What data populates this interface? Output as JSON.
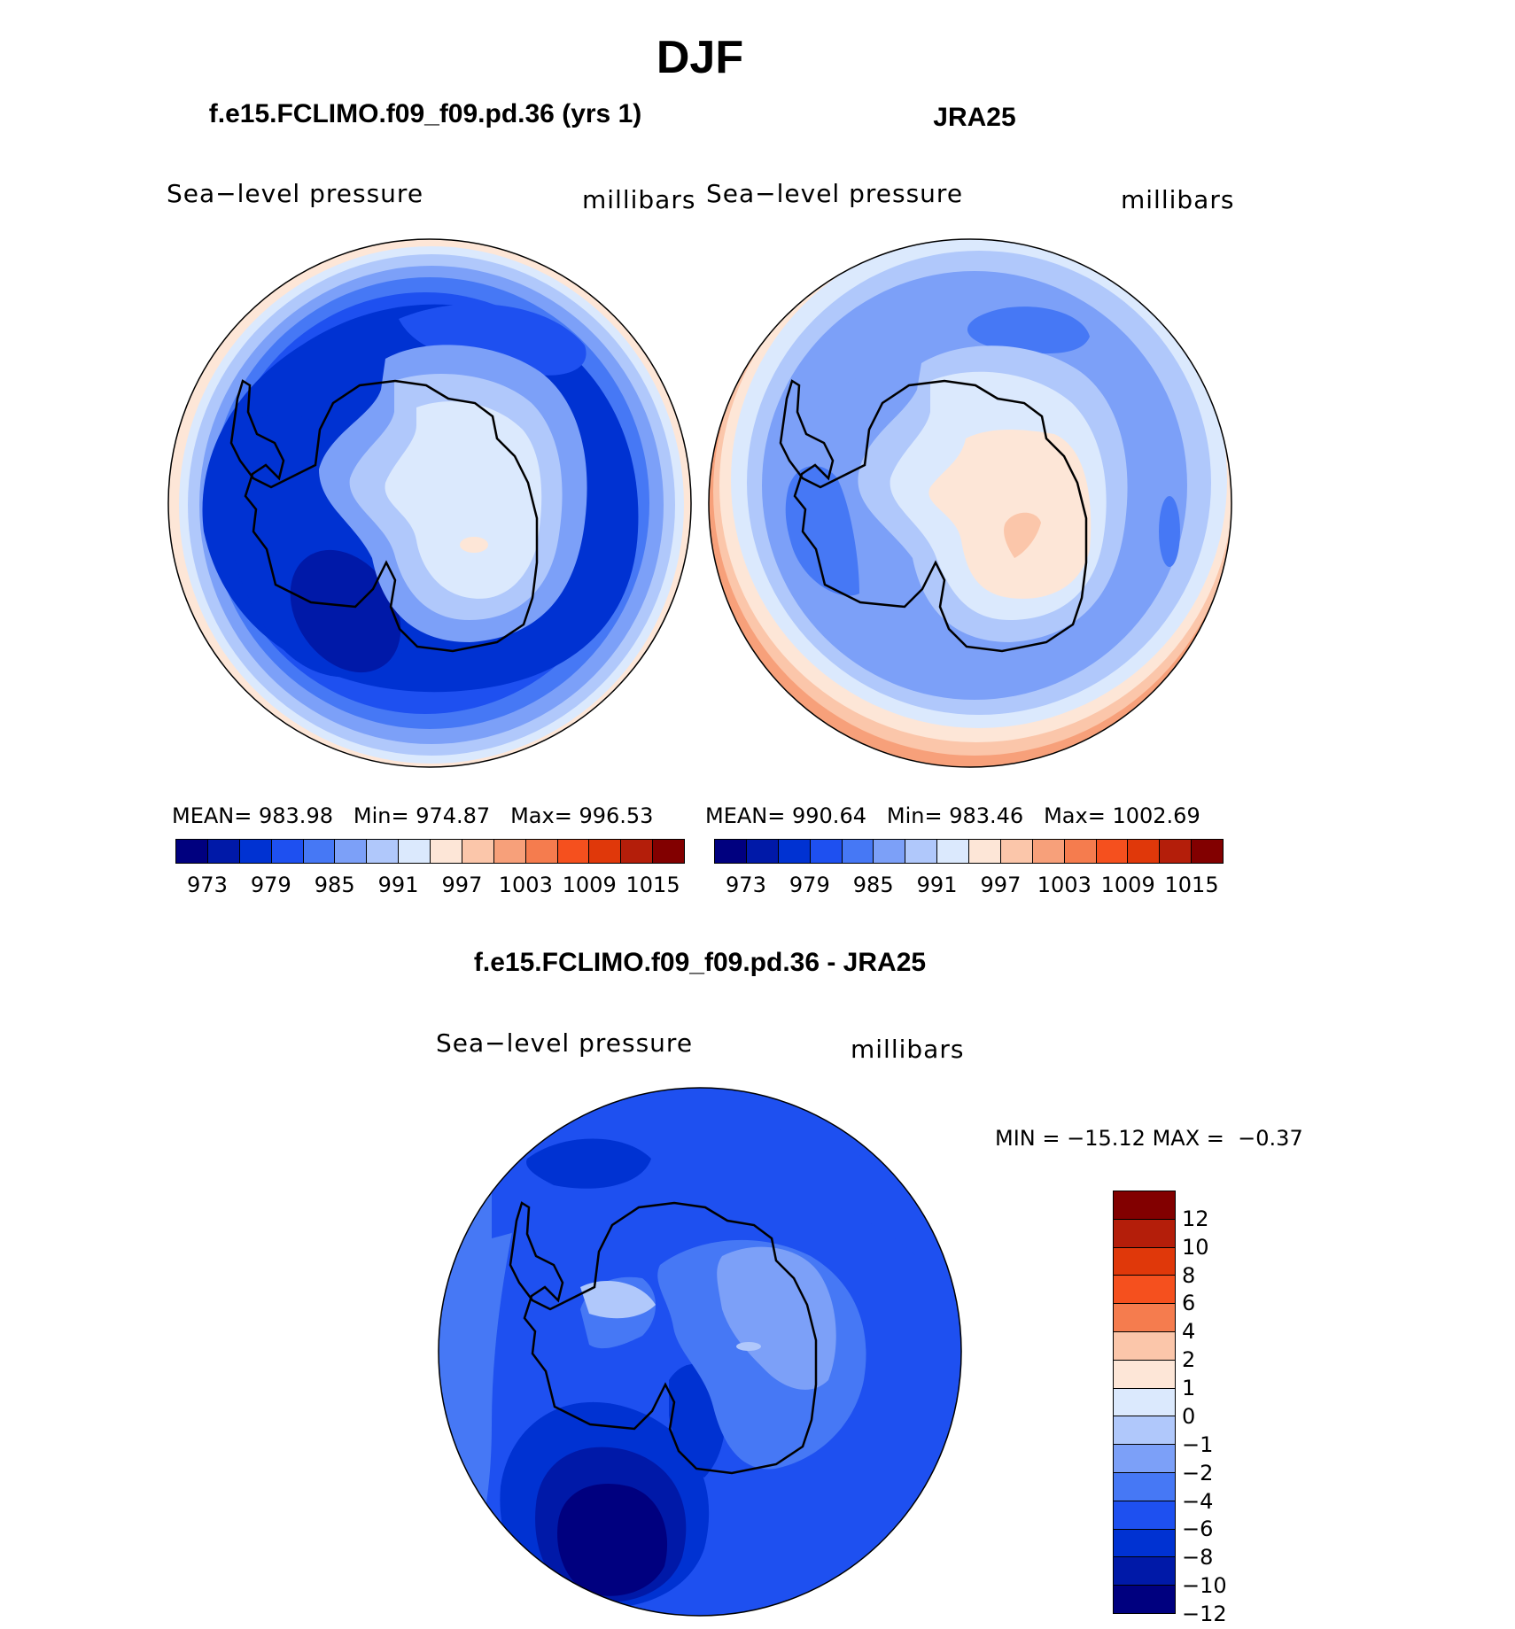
{
  "page_title": "DJF",
  "panels": [
    {
      "title": "f.e15.FCLIMO.f09_f09.pd.36 (yrs 1)",
      "variable": "Sea−level pressure",
      "units": "millibars",
      "stats": {
        "mean_label": "MEAN=",
        "mean": "983.98",
        "min_label": "Min=",
        "min": "974.87",
        "max_label": "Max=",
        "max": "996.53"
      }
    },
    {
      "title": "JRA25",
      "variable": "Sea−level pressure",
      "units": "millibars",
      "stats": {
        "mean_label": "MEAN=",
        "mean": "990.64",
        "min_label": "Min=",
        "min": "983.46",
        "max_label": "Max=",
        "max": "1002.69"
      }
    },
    {
      "title": "f.e15.FCLIMO.f09_f09.pd.36 - JRA25",
      "variable": "Sea−level pressure",
      "units": "millibars",
      "stats": {
        "min_label": "MIN =",
        "min": "−15.12",
        "max_label": "MAX =",
        "max": "−0.37"
      }
    }
  ],
  "colorbar_abs": {
    "colors": [
      "#00007f",
      "#0019a8",
      "#0032d2",
      "#1e50f0",
      "#4678f5",
      "#7ca0f8",
      "#b0c8fb",
      "#dbe9fd",
      "#fde6d7",
      "#fbc6aa",
      "#f7a07a",
      "#f57c4e",
      "#f5501e",
      "#e0380a",
      "#b41e0a",
      "#820000"
    ],
    "tick_labels": [
      "973",
      "979",
      "985",
      "991",
      "997",
      "1003",
      "1009",
      "1015"
    ]
  },
  "colorbar_diff": {
    "colors": [
      "#820000",
      "#b41e0a",
      "#e0380a",
      "#f5501e",
      "#f57c4e",
      "#fbc6aa",
      "#fde6d7",
      "#dbe9fd",
      "#b0c8fb",
      "#7ca0f8",
      "#4678f5",
      "#1e50f0",
      "#0032d2",
      "#0019a8",
      "#00007f"
    ],
    "tick_labels": [
      "12",
      "10",
      "8",
      "6",
      "4",
      "2",
      "1",
      "0",
      "−1",
      "−2",
      "−4",
      "−6",
      "−8",
      "−10",
      "−12"
    ]
  }
}
